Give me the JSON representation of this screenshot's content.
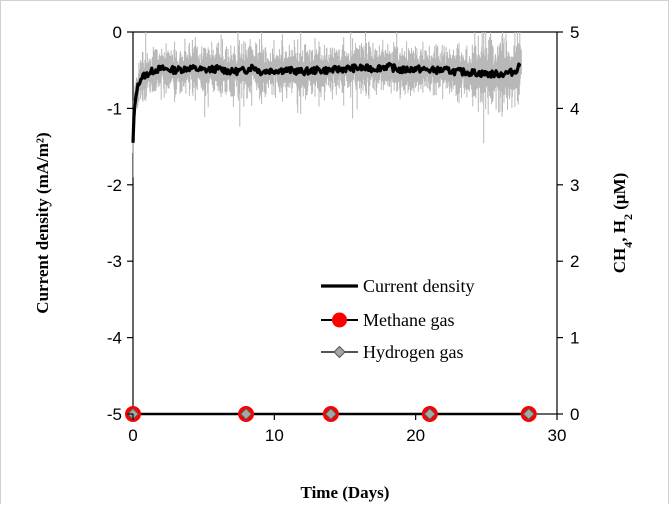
{
  "chart_data": {
    "type": "line",
    "xlabel": "Time (Days)",
    "ylabel_left": "Current density (mA/m²)",
    "ylabel_right": {
      "parts": [
        "CH",
        "4",
        ", H",
        "2",
        " (μM)"
      ]
    },
    "x_range": [
      0,
      30
    ],
    "y_left_range": [
      -5,
      0
    ],
    "y_right_range": [
      0,
      5
    ],
    "x_ticks": [
      "0",
      "10",
      "20",
      "30"
    ],
    "y_left_ticks": [
      "0",
      "-1",
      "-2",
      "-3",
      "-4",
      "-5"
    ],
    "y_right_ticks": [
      "5",
      "4",
      "3",
      "2",
      "1",
      "0"
    ],
    "grid": false,
    "legend_position": "lower-right",
    "series": [
      {
        "name": "Current density",
        "axis": "left",
        "color": "#000000",
        "noise_color": "#b8b8b8",
        "x": [
          0,
          0.05,
          0.1,
          0.2,
          0.3,
          0.4,
          0.5,
          0.7,
          1.0,
          1.5,
          2,
          3,
          4,
          5,
          6,
          7,
          8,
          8.5,
          9,
          10,
          11,
          12,
          13,
          14,
          15,
          16,
          17,
          18,
          19,
          20,
          21,
          22,
          23,
          24,
          25,
          26,
          27,
          27.5
        ],
        "y": [
          -1.45,
          -1.15,
          -1.0,
          -0.85,
          -0.75,
          -0.68,
          -0.62,
          -0.58,
          -0.55,
          -0.5,
          -0.48,
          -0.5,
          -0.47,
          -0.5,
          -0.48,
          -0.52,
          -0.5,
          -0.45,
          -0.52,
          -0.5,
          -0.5,
          -0.52,
          -0.5,
          -0.5,
          -0.48,
          -0.47,
          -0.48,
          -0.45,
          -0.5,
          -0.48,
          -0.5,
          -0.5,
          -0.52,
          -0.53,
          -0.55,
          -0.55,
          -0.52,
          -0.4
        ]
      },
      {
        "name": "Methane gas",
        "axis": "right",
        "color": "#ff0000",
        "x": [
          0,
          8,
          14,
          21,
          28
        ],
        "y": [
          0,
          0,
          0,
          0,
          0
        ]
      },
      {
        "name": "Hydrogen gas",
        "axis": "right",
        "color": "#a6a6a6",
        "x": [
          0,
          8,
          14,
          21,
          28
        ],
        "y": [
          0,
          0,
          0,
          0,
          0
        ]
      }
    ]
  }
}
